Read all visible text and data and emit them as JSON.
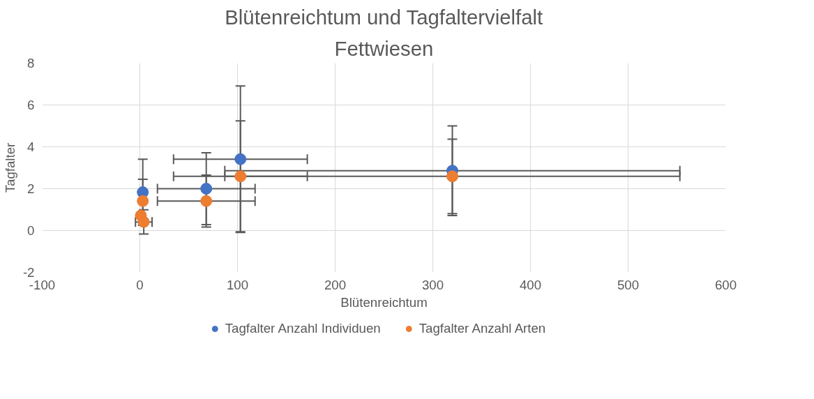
{
  "chart_data": {
    "type": "scatter",
    "title": "Blütenreichtum und Tagfaltervielfalt",
    "subtitle": "Fettwiesen",
    "xlabel": "Blütenreichtum",
    "ylabel": "Tagfalter",
    "xlim": [
      -100,
      600
    ],
    "xticks": [
      -100,
      0,
      100,
      200,
      300,
      400,
      500,
      600
    ],
    "ylim": [
      -2,
      8
    ],
    "yticks": [
      -2,
      0,
      2,
      4,
      6,
      8
    ],
    "grid": true,
    "legend": "bottom",
    "marker": "circle",
    "series": [
      {
        "name": "Tagfalter Anzahl Individuen",
        "color": "#4472c4",
        "x": [
          3,
          68,
          103,
          320
        ],
        "values": [
          1.83,
          2.0,
          3.41,
          2.86
        ],
        "errors": [
          1.58,
          1.72,
          3.5,
          2.14
        ],
        "xerrors": [
          null,
          50,
          68.5,
          233
        ]
      },
      {
        "name": "Tagfalter Anzahl Arten",
        "color": "#ed7d31",
        "x": [
          3,
          68,
          103,
          320,
          1,
          4
        ],
        "values": [
          1.41,
          1.41,
          2.59,
          2.59,
          0.72,
          0.41
        ],
        "errors": [
          1.04,
          1.24,
          2.65,
          1.78,
          null,
          0.58
        ],
        "xerrors": [
          null,
          50,
          68.5,
          233,
          null,
          8.5
        ]
      }
    ]
  }
}
